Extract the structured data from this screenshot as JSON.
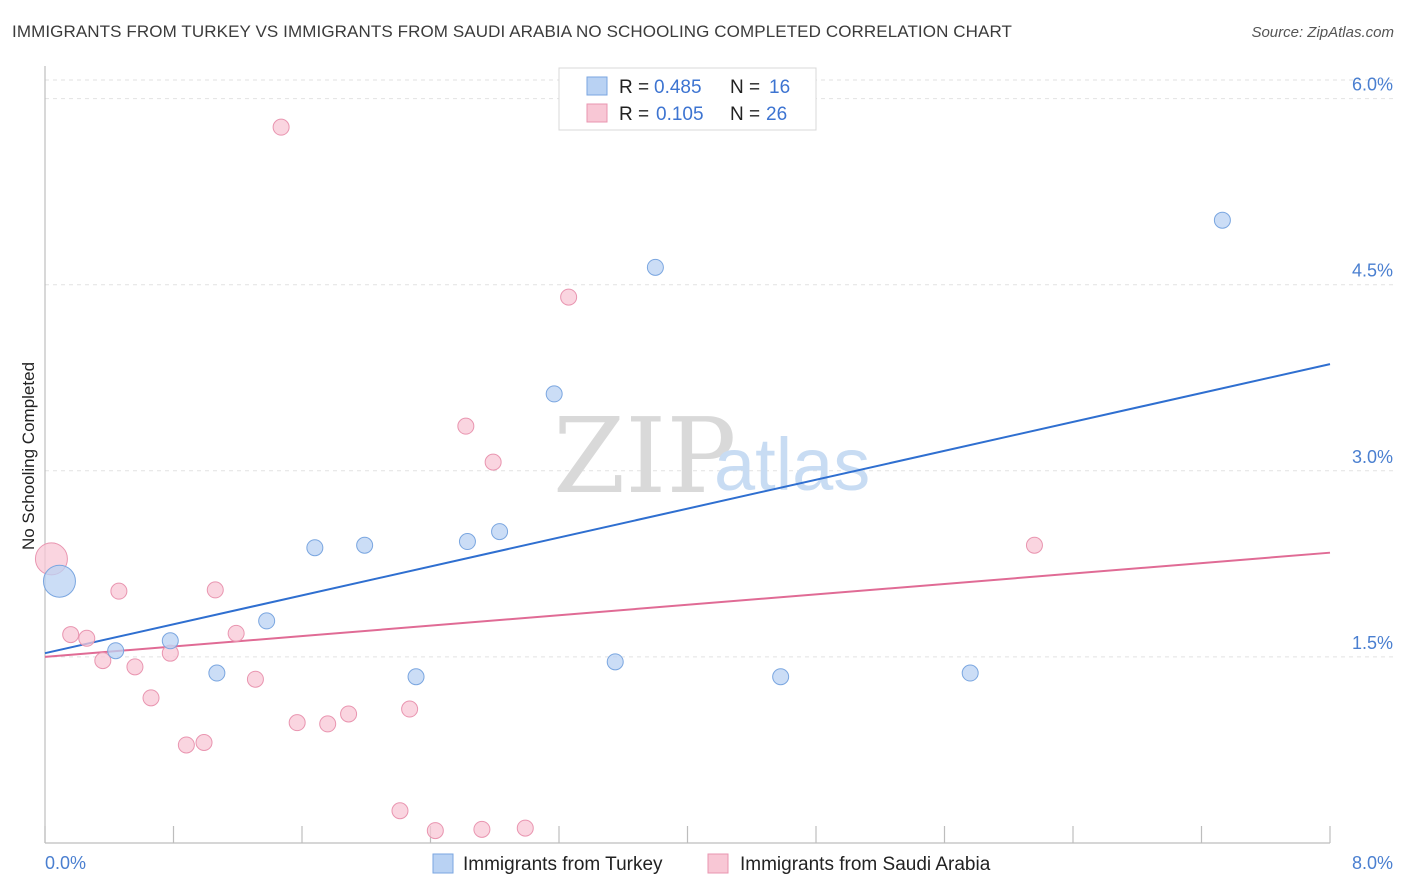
{
  "title": "IMMIGRANTS FROM TURKEY VS IMMIGRANTS FROM SAUDI ARABIA NO SCHOOLING COMPLETED CORRELATION CHART",
  "source": "Source: ZipAtlas.com",
  "watermark": {
    "zip": "ZIP",
    "atlas": "atlas"
  },
  "colors": {
    "turkey_fill": "#b9d2f3",
    "turkey_stroke": "#7aa6e0",
    "turkey_line": "#2f6fd0",
    "saudi_fill": "#f8c7d5",
    "saudi_stroke": "#e995b0",
    "saudi_line": "#e06b95",
    "tick_label": "#4a7fd0"
  },
  "legend": {
    "rows": [
      {
        "r_label": "R =",
        "r_value": "0.485",
        "n_label": "N =",
        "n_value": "16"
      },
      {
        "r_label": "R =",
        "r_value": "0.105",
        "n_label": "N =",
        "n_value": "26"
      }
    ]
  },
  "chart_data": {
    "type": "scatter",
    "title": "IMMIGRANTS FROM TURKEY VS IMMIGRANTS FROM SAUDI ARABIA NO SCHOOLING COMPLETED CORRELATION CHART",
    "xlabel": "",
    "ylabel": "No Schooling Completed",
    "xlim": [
      0,
      8
    ],
    "ylim": [
      0,
      6.15
    ],
    "x_tick_labels": [
      "0.0%",
      "8.0%"
    ],
    "y_ticks": [
      1.5,
      3.0,
      4.5,
      6.0
    ],
    "y_tick_labels": [
      "1.5%",
      "3.0%",
      "4.5%",
      "6.0%"
    ],
    "series": [
      {
        "name": "Immigrants from Turkey",
        "r": 0.485,
        "n": 16,
        "trend": {
          "x": [
            0,
            8
          ],
          "y": [
            1.53,
            3.86
          ]
        },
        "points": [
          {
            "x": 0.09,
            "y": 2.11,
            "big": true
          },
          {
            "x": 0.44,
            "y": 1.55
          },
          {
            "x": 0.78,
            "y": 1.63
          },
          {
            "x": 1.07,
            "y": 1.37
          },
          {
            "x": 1.38,
            "y": 1.79
          },
          {
            "x": 1.68,
            "y": 2.38
          },
          {
            "x": 1.99,
            "y": 2.4
          },
          {
            "x": 2.31,
            "y": 1.34
          },
          {
            "x": 2.63,
            "y": 2.43
          },
          {
            "x": 2.83,
            "y": 2.51
          },
          {
            "x": 3.17,
            "y": 3.62
          },
          {
            "x": 3.55,
            "y": 1.46
          },
          {
            "x": 3.8,
            "y": 4.64
          },
          {
            "x": 4.58,
            "y": 1.34
          },
          {
            "x": 5.76,
            "y": 1.37
          },
          {
            "x": 7.33,
            "y": 5.02
          }
        ]
      },
      {
        "name": "Immigrants from Saudi Arabia",
        "r": 0.105,
        "n": 26,
        "trend": {
          "x": [
            0,
            8
          ],
          "y": [
            1.5,
            2.34
          ]
        },
        "points": [
          {
            "x": 0.04,
            "y": 2.29,
            "big": true
          },
          {
            "x": 0.16,
            "y": 1.68
          },
          {
            "x": 0.26,
            "y": 1.65
          },
          {
            "x": 0.36,
            "y": 1.47
          },
          {
            "x": 0.46,
            "y": 2.03
          },
          {
            "x": 0.56,
            "y": 1.42
          },
          {
            "x": 0.66,
            "y": 1.17
          },
          {
            "x": 0.78,
            "y": 1.53
          },
          {
            "x": 0.88,
            "y": 0.79
          },
          {
            "x": 0.99,
            "y": 0.81
          },
          {
            "x": 1.06,
            "y": 2.04
          },
          {
            "x": 1.19,
            "y": 1.69
          },
          {
            "x": 1.31,
            "y": 1.32
          },
          {
            "x": 1.47,
            "y": 5.77
          },
          {
            "x": 1.57,
            "y": 0.97
          },
          {
            "x": 1.76,
            "y": 0.96
          },
          {
            "x": 1.89,
            "y": 1.04
          },
          {
            "x": 2.21,
            "y": 0.26
          },
          {
            "x": 2.27,
            "y": 1.08
          },
          {
            "x": 2.43,
            "y": 0.1
          },
          {
            "x": 2.62,
            "y": 3.36
          },
          {
            "x": 2.72,
            "y": 0.11
          },
          {
            "x": 2.79,
            "y": 3.07
          },
          {
            "x": 2.99,
            "y": 0.12
          },
          {
            "x": 3.26,
            "y": 4.4
          },
          {
            "x": 6.16,
            "y": 2.4
          }
        ]
      }
    ]
  }
}
